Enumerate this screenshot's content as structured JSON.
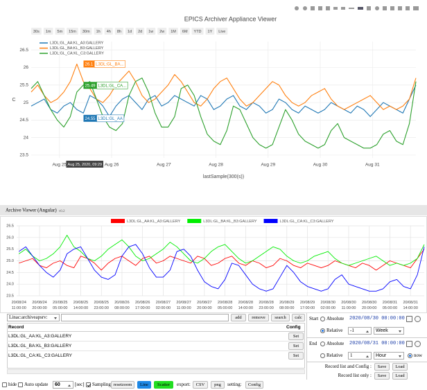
{
  "chart_data": [
    {
      "type": "line",
      "title": "EPICS Archiver Appliance Viewer",
      "range_buttons": [
        "30s",
        "1m",
        "5m",
        "15m",
        "30m",
        "1h",
        "4h",
        "8h",
        "1d",
        "2d",
        "1w",
        "2w",
        "1M",
        "6M",
        "YTD",
        "1Y",
        "Live"
      ],
      "x_label": "lastSample(300(s))",
      "y_label": "C",
      "x": [
        "2020-08-24T11:00",
        "2020-08-24T14:00",
        "2020-08-24T17:00",
        "2020-08-24T20:00",
        "2020-08-24T23:00",
        "2020-08-25T02:00",
        "2020-08-25T05:00",
        "2020-08-25T08:00",
        "2020-08-25T11:00",
        "2020-08-25T14:00",
        "2020-08-25T17:00",
        "2020-08-25T20:00",
        "2020-08-25T23:00",
        "2020-08-26T02:00",
        "2020-08-26T05:00",
        "2020-08-26T08:00",
        "2020-08-26T11:00",
        "2020-08-26T14:00",
        "2020-08-26T17:00",
        "2020-08-26T20:00",
        "2020-08-26T23:00",
        "2020-08-27T02:00",
        "2020-08-27T05:00",
        "2020-08-27T08:00",
        "2020-08-27T11:00",
        "2020-08-27T14:00",
        "2020-08-27T17:00",
        "2020-08-27T20:00",
        "2020-08-27T23:00",
        "2020-08-28T02:00",
        "2020-08-28T05:00",
        "2020-08-28T08:00",
        "2020-08-28T11:00",
        "2020-08-28T14:00",
        "2020-08-28T17:00",
        "2020-08-28T20:00",
        "2020-08-28T23:00",
        "2020-08-29T02:00",
        "2020-08-29T05:00",
        "2020-08-29T08:00",
        "2020-08-29T11:00",
        "2020-08-29T14:00",
        "2020-08-29T17:00",
        "2020-08-29T20:00",
        "2020-08-29T23:00",
        "2020-08-30T02:00",
        "2020-08-30T05:00",
        "2020-08-30T08:00",
        "2020-08-30T11:00",
        "2020-08-30T14:00",
        "2020-08-30T17:00",
        "2020-08-30T20:00",
        "2020-08-30T23:00",
        "2020-08-31T02:00",
        "2020-08-31T05:00",
        "2020-08-31T08:00",
        "2020-08-31T11:00",
        "2020-08-31T14:00",
        "2020-08-31T17:00",
        "2020-08-31T20:00"
      ],
      "xlim": [
        "2020-08-24T11:00",
        "2020-08-31T20:00"
      ],
      "xticks": [
        {
          "value": "2020-08-25T00:00",
          "label": "Aug 25"
        },
        {
          "value": "2020-08-26T00:00",
          "label": "Aug 26"
        },
        {
          "value": "2020-08-27T00:00",
          "label": "Aug 27"
        },
        {
          "value": "2020-08-28T00:00",
          "label": "Aug 28"
        },
        {
          "value": "2020-08-29T00:00",
          "label": "Aug 29"
        },
        {
          "value": "2020-08-30T00:00",
          "label": "Aug 30"
        },
        {
          "value": "2020-08-31T00:00",
          "label": "Aug 31"
        }
      ],
      "ylim": [
        23.42,
        26.74
      ],
      "yticks": [
        23.5,
        24,
        24.5,
        25,
        25.5,
        26,
        26.5
      ],
      "grid": true,
      "legend": "top-left",
      "series": [
        {
          "name": "L3DL:GL_AA:KL_A3:GALLERY",
          "color": "#1f77b4",
          "values": [
            24.9,
            25.0,
            25.1,
            24.8,
            24.7,
            24.9,
            25.0,
            24.8,
            24.7,
            25.2,
            25.1,
            24.9,
            24.6,
            24.9,
            25.1,
            25.2,
            25.0,
            24.8,
            25.1,
            25.2,
            24.9,
            25.0,
            25.2,
            25.1,
            25.0,
            24.9,
            25.2,
            25.1,
            24.8,
            24.9,
            25.1,
            25.2,
            24.9,
            24.8,
            25.0,
            24.9,
            24.7,
            24.8,
            25.1,
            25.0,
            24.8,
            24.7,
            24.9,
            24.8,
            24.7,
            24.8,
            25.0,
            24.9,
            24.8,
            24.7,
            24.9,
            24.8,
            24.6,
            24.8,
            25.0,
            24.9,
            24.8,
            24.7,
            25.1,
            25.5
          ]
        },
        {
          "name": "L3DL:GL_BA:KL_B3:GALLERY",
          "color": "#ff7f0e",
          "values": [
            25.3,
            25.5,
            25.2,
            25.0,
            25.1,
            25.3,
            25.6,
            26.1,
            25.6,
            25.4,
            25.1,
            25.0,
            25.2,
            25.5,
            25.7,
            25.9,
            25.6,
            25.2,
            25.0,
            25.1,
            25.3,
            25.5,
            25.8,
            25.6,
            25.3,
            25.0,
            24.9,
            25.1,
            25.4,
            25.6,
            25.7,
            25.4,
            25.1,
            24.9,
            25.0,
            25.2,
            25.4,
            25.6,
            25.5,
            25.2,
            25.0,
            24.9,
            25.0,
            25.2,
            25.3,
            25.4,
            25.1,
            24.9,
            24.8,
            24.9,
            25.0,
            25.1,
            25.2,
            25.0,
            24.8,
            24.9,
            24.8,
            24.9,
            25.1,
            25.7
          ]
        },
        {
          "name": "L3DL:GL_CA:KL_C3:GALLERY",
          "color": "#2ca02c",
          "values": [
            25.4,
            25.6,
            25.2,
            24.8,
            24.5,
            24.3,
            24.6,
            25.3,
            25.5,
            25.6,
            25.1,
            24.6,
            24.3,
            24.2,
            24.4,
            25.2,
            25.6,
            25.7,
            25.3,
            24.7,
            24.3,
            24.3,
            24.6,
            25.4,
            25.5,
            25.2,
            24.6,
            24.1,
            23.9,
            23.8,
            24.2,
            24.9,
            24.8,
            24.4,
            24.0,
            23.8,
            23.7,
            23.8,
            24.3,
            24.8,
            24.5,
            24.1,
            23.9,
            23.8,
            23.7,
            23.8,
            24.2,
            24.4,
            24.0,
            23.9,
            23.8,
            23.7,
            23.7,
            23.8,
            24.1,
            24.2,
            23.9,
            23.8,
            24.4,
            25.6
          ]
        }
      ],
      "hover": {
        "x": "2020-08-25T09:29",
        "x_label": "Aug 25, 2020, 09:29",
        "labels": [
          {
            "value": 26.1,
            "label": "L3DL:GL_BA...",
            "color": "#ff7f0e"
          },
          {
            "value": 25.49,
            "label": "L3DL:GL_CA...",
            "color": "#2ca02c"
          },
          {
            "value": 24.55,
            "label": "L3DL:GL_AA",
            "color": "#1f77b4"
          }
        ]
      }
    },
    {
      "type": "line",
      "x": [
        "2020-08-24T11:00",
        "2020-08-24T14:00",
        "2020-08-24T17:00",
        "2020-08-24T20:00",
        "2020-08-24T23:00",
        "2020-08-25T02:00",
        "2020-08-25T05:00",
        "2020-08-25T08:00",
        "2020-08-25T11:00",
        "2020-08-25T14:00",
        "2020-08-25T17:00",
        "2020-08-25T20:00",
        "2020-08-25T23:00",
        "2020-08-26T02:00",
        "2020-08-26T05:00",
        "2020-08-26T08:00",
        "2020-08-26T11:00",
        "2020-08-26T14:00",
        "2020-08-26T17:00",
        "2020-08-26T20:00",
        "2020-08-26T23:00",
        "2020-08-27T02:00",
        "2020-08-27T05:00",
        "2020-08-27T08:00",
        "2020-08-27T11:00",
        "2020-08-27T14:00",
        "2020-08-27T17:00",
        "2020-08-27T20:00",
        "2020-08-27T23:00",
        "2020-08-28T02:00",
        "2020-08-28T05:00",
        "2020-08-28T08:00",
        "2020-08-28T11:00",
        "2020-08-28T14:00",
        "2020-08-28T17:00",
        "2020-08-28T20:00",
        "2020-08-28T23:00",
        "2020-08-29T02:00",
        "2020-08-29T05:00",
        "2020-08-29T08:00",
        "2020-08-29T11:00",
        "2020-08-29T14:00",
        "2020-08-29T17:00",
        "2020-08-29T20:00",
        "2020-08-29T23:00",
        "2020-08-30T02:00",
        "2020-08-30T05:00",
        "2020-08-30T08:00",
        "2020-08-30T11:00",
        "2020-08-30T14:00",
        "2020-08-30T17:00",
        "2020-08-30T20:00",
        "2020-08-30T23:00",
        "2020-08-31T02:00",
        "2020-08-31T05:00",
        "2020-08-31T08:00",
        "2020-08-31T11:00",
        "2020-08-31T14:00",
        "2020-08-31T17:00",
        "2020-08-31T20:00"
      ],
      "xlim": [
        "2020-08-24T10:00",
        "2020-08-31T20:00"
      ],
      "xticks": [
        {
          "value": "2020-08-24T11:00",
          "label": "20/08/24 11:00:00"
        },
        {
          "value": "2020-08-24T20:00",
          "label": "20/08/24 20:00:00"
        },
        {
          "value": "2020-08-25T05:00",
          "label": "20/08/25 05:00:00"
        },
        {
          "value": "2020-08-25T14:00",
          "label": "20/08/25 14:00:00"
        },
        {
          "value": "2020-08-25T23:00",
          "label": "20/08/25 23:00:00"
        },
        {
          "value": "2020-08-26T08:00",
          "label": "20/08/26 08:00:00"
        },
        {
          "value": "2020-08-26T17:00",
          "label": "20/08/26 17:00:00"
        },
        {
          "value": "2020-08-27T02:00",
          "label": "20/08/27 02:00:00"
        },
        {
          "value": "2020-08-27T11:00",
          "label": "20/08/27 11:00:00"
        },
        {
          "value": "2020-08-27T20:00",
          "label": "20/08/27 20:00:00"
        },
        {
          "value": "2020-08-28T05:00",
          "label": "20/08/28 05:00:00"
        },
        {
          "value": "2020-08-28T14:00",
          "label": "20/08/28 14:00:00"
        },
        {
          "value": "2020-08-28T23:00",
          "label": "20/08/28 23:00:00"
        },
        {
          "value": "2020-08-29T08:00",
          "label": "20/08/29 08:00:00"
        },
        {
          "value": "2020-08-29T17:00",
          "label": "20/08/29 17:00:00"
        },
        {
          "value": "2020-08-30T02:00",
          "label": "20/08/30 02:00:00"
        },
        {
          "value": "2020-08-30T11:00",
          "label": "20/08/30 11:00:00"
        },
        {
          "value": "2020-08-30T20:00",
          "label": "20/08/30 20:00:00"
        },
        {
          "value": "2020-08-31T05:00",
          "label": "20/08/31 05:00:00"
        },
        {
          "value": "2020-08-31T14:00",
          "label": "20/08/31 14:00:00"
        }
      ],
      "ylim": [
        23.5,
        26.5
      ],
      "yticks": [
        23.5,
        {
          "value": 24,
          "label": "24.0"
        },
        24.5,
        {
          "value": 25,
          "label": "25.0"
        },
        25.5,
        {
          "value": 26,
          "label": "26.0"
        },
        26.5
      ],
      "grid": true,
      "legend": "top",
      "series": [
        {
          "name": "L3DL:GL_AA:KL_A3:GALLERY",
          "color": "#ff0000",
          "values": [
            24.9,
            25.0,
            25.1,
            24.8,
            24.7,
            24.9,
            25.0,
            24.8,
            24.7,
            25.2,
            25.1,
            24.9,
            24.6,
            24.9,
            25.1,
            25.2,
            25.0,
            24.8,
            25.1,
            25.2,
            24.9,
            25.0,
            25.2,
            25.1,
            25.0,
            24.9,
            25.2,
            25.1,
            24.8,
            24.9,
            25.1,
            25.2,
            24.9,
            24.8,
            25.0,
            24.9,
            24.7,
            24.8,
            25.1,
            25.0,
            24.8,
            24.7,
            24.9,
            24.8,
            24.7,
            24.8,
            25.0,
            24.9,
            24.8,
            24.7,
            24.9,
            24.8,
            24.6,
            24.8,
            25.0,
            24.9,
            24.8,
            24.7,
            25.1,
            25.5
          ]
        },
        {
          "name": "L3DL:GL_BA:KL_B3:GALLERY",
          "color": "#00ee00",
          "values": [
            25.3,
            25.5,
            25.2,
            25.0,
            25.1,
            25.3,
            25.6,
            26.1,
            25.6,
            25.4,
            25.1,
            25.0,
            25.2,
            25.5,
            25.7,
            25.9,
            25.6,
            25.2,
            25.0,
            25.1,
            25.3,
            25.5,
            25.8,
            25.6,
            25.3,
            25.0,
            24.9,
            25.1,
            25.4,
            25.6,
            25.7,
            25.4,
            25.1,
            24.9,
            25.0,
            25.2,
            25.4,
            25.6,
            25.5,
            25.2,
            25.0,
            24.9,
            25.0,
            25.2,
            25.3,
            25.4,
            25.1,
            24.9,
            24.8,
            24.9,
            25.0,
            25.1,
            25.2,
            25.0,
            24.8,
            24.9,
            24.8,
            24.9,
            25.1,
            25.7
          ]
        },
        {
          "name": "L3DL:GL_CA:KL_C3:GALLERY",
          "color": "#0000ff",
          "values": [
            25.4,
            25.6,
            25.2,
            24.8,
            24.5,
            24.3,
            24.6,
            25.3,
            25.5,
            25.6,
            25.1,
            24.6,
            24.3,
            24.2,
            24.4,
            25.2,
            25.6,
            25.7,
            25.3,
            24.7,
            24.3,
            24.3,
            24.6,
            25.4,
            25.5,
            25.2,
            24.6,
            24.1,
            23.9,
            23.8,
            24.2,
            24.9,
            24.8,
            24.4,
            24.0,
            23.8,
            23.7,
            23.8,
            24.3,
            24.8,
            24.5,
            24.1,
            23.9,
            23.8,
            23.7,
            23.8,
            24.2,
            24.4,
            24.0,
            23.9,
            23.8,
            23.7,
            23.7,
            23.8,
            24.1,
            24.2,
            23.9,
            23.8,
            24.4,
            25.6
          ]
        }
      ]
    }
  ],
  "app": {
    "title": "Archive Viewer (Angular)",
    "version": "v0.2"
  },
  "pv_bar": {
    "server": "Linac:archiveapsrv:",
    "buttons": [
      "add",
      "remove",
      "search",
      "calc"
    ]
  },
  "records": {
    "headers": [
      "Record",
      "Config"
    ],
    "rows": [
      {
        "name": "L3DL:GL_AA:KL_A3:GALLERY",
        "action": "Set"
      },
      {
        "name": "L3DL:GL_BA:KL_B3:GALLERY",
        "action": "Set"
      },
      {
        "name": "L3DL:GL_CA:KL_C3:GALLERY",
        "action": "Set"
      }
    ]
  },
  "time_range": {
    "start": {
      "label": "Start",
      "absolute": "Absolute",
      "date": "2020/08/30 00:00:00",
      "relative": "Relative",
      "amount": -1,
      "unit": "Week",
      "mode": "relative"
    },
    "end": {
      "label": "End",
      "absolute": "Absolute",
      "date": "2020/08/31 00:00:00",
      "relative": "Relative",
      "amount": 1,
      "unit": "Hour",
      "now": "now",
      "mode": "now"
    },
    "record_list_config": {
      "label": "Record list and Config :",
      "buttons": [
        "Save",
        "Load"
      ]
    },
    "record_list_only": {
      "label": "Record list only :",
      "buttons": [
        "Save",
        "Load"
      ]
    }
  },
  "options": {
    "hide": {
      "label": "hide",
      "checked": false
    },
    "auto_update": {
      "label": "Auto update",
      "checked": false,
      "interval": 60,
      "unit": "[sec]"
    },
    "sampling": {
      "label": "Sampling",
      "checked": true
    },
    "buttons": [
      {
        "label": "resetzoom"
      },
      {
        "label": "Line",
        "color": "#1e88e5"
      },
      {
        "label": "Scatter",
        "color": "#22dd22"
      }
    ],
    "export_label": "export:",
    "export_buttons": [
      "CSV",
      "png"
    ],
    "setting_label": "setting:",
    "setting_button": "Config"
  }
}
